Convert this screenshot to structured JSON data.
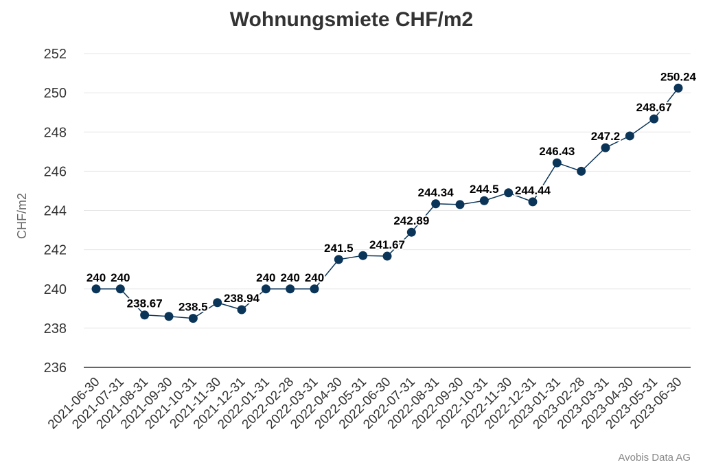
{
  "chart_data": {
    "type": "line",
    "title": "Wohnungsmiete CHF/m2",
    "xlabel": "",
    "ylabel": "CHF/m2",
    "ylim": [
      236,
      252
    ],
    "yticks": [
      236,
      238,
      240,
      242,
      244,
      246,
      248,
      250,
      252
    ],
    "grid": true,
    "legend": "none",
    "colors": {
      "line": "#0b3558",
      "grid": "#e6e6e6",
      "axis": "#333333"
    },
    "categories": [
      "2021-06-30",
      "2021-07-31",
      "2021-08-31",
      "2021-09-30",
      "2021-10-31",
      "2021-11-30",
      "2021-12-31",
      "2022-01-31",
      "2022-02-28",
      "2022-03-31",
      "2022-04-30",
      "2022-05-31",
      "2022-06-30",
      "2022-07-31",
      "2022-08-31",
      "2022-09-30",
      "2022-10-31",
      "2022-11-30",
      "2022-12-31",
      "2023-01-31",
      "2023-02-28",
      "2023-03-31",
      "2023-04-30",
      "2023-05-31",
      "2023-06-30"
    ],
    "values": [
      240,
      240,
      238.67,
      238.6,
      238.5,
      239.3,
      238.94,
      240,
      240,
      240,
      241.5,
      241.7,
      241.67,
      242.89,
      244.34,
      244.3,
      244.5,
      244.9,
      244.44,
      246.43,
      246.0,
      247.2,
      247.8,
      248.67,
      250.24
    ],
    "data_labels": [
      "240",
      "240",
      "238.67",
      "",
      "238.5",
      "",
      "238.94",
      "240",
      "240",
      "240",
      "241.5",
      "",
      "241.67",
      "242.89",
      "244.34",
      "",
      "244.5",
      "",
      "244.44",
      "246.43",
      "",
      "247.2",
      "",
      "248.67",
      "250.24"
    ]
  },
  "source": "Avobis Data AG"
}
